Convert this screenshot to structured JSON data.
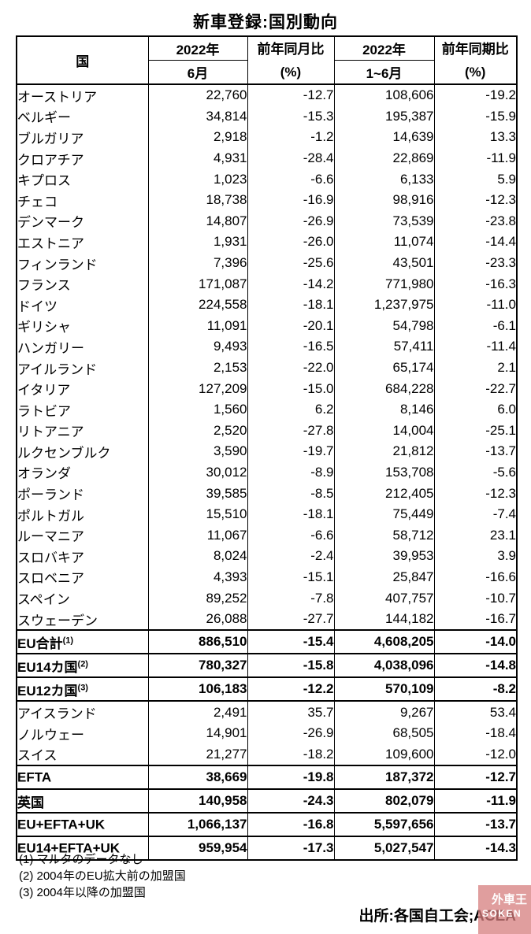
{
  "title": "新車登録:国別動向",
  "table": {
    "header": {
      "country": "国",
      "jun_year": "2022年",
      "jun_label": "6月",
      "yoy_month_label": "前年同月比",
      "yoy_month_unit": "(%)",
      "h1_year": "2022年",
      "h1_label": "1~6月",
      "yoy_period_label": "前年同期比",
      "yoy_period_unit": "(%)"
    },
    "rows": [
      {
        "label": "オーストリア",
        "sup": "",
        "jun": "22,760",
        "yoy_m": "-12.7",
        "h1": "108,606",
        "yoy_p": "-19.2",
        "bold": false
      },
      {
        "label": "ベルギー",
        "sup": "",
        "jun": "34,814",
        "yoy_m": "-15.3",
        "h1": "195,387",
        "yoy_p": "-15.9",
        "bold": false
      },
      {
        "label": "ブルガリア",
        "sup": "",
        "jun": "2,918",
        "yoy_m": "-1.2",
        "h1": "14,639",
        "yoy_p": "13.3",
        "bold": false
      },
      {
        "label": "クロアチア",
        "sup": "",
        "jun": "4,931",
        "yoy_m": "-28.4",
        "h1": "22,869",
        "yoy_p": "-11.9",
        "bold": false
      },
      {
        "label": "キプロス",
        "sup": "",
        "jun": "1,023",
        "yoy_m": "-6.6",
        "h1": "6,133",
        "yoy_p": "5.9",
        "bold": false
      },
      {
        "label": "チェコ",
        "sup": "",
        "jun": "18,738",
        "yoy_m": "-16.9",
        "h1": "98,916",
        "yoy_p": "-12.3",
        "bold": false
      },
      {
        "label": "デンマーク",
        "sup": "",
        "jun": "14,807",
        "yoy_m": "-26.9",
        "h1": "73,539",
        "yoy_p": "-23.8",
        "bold": false
      },
      {
        "label": "エストニア",
        "sup": "",
        "jun": "1,931",
        "yoy_m": "-26.0",
        "h1": "11,074",
        "yoy_p": "-14.4",
        "bold": false
      },
      {
        "label": "フィンランド",
        "sup": "",
        "jun": "7,396",
        "yoy_m": "-25.6",
        "h1": "43,501",
        "yoy_p": "-23.3",
        "bold": false
      },
      {
        "label": "フランス",
        "sup": "",
        "jun": "171,087",
        "yoy_m": "-14.2",
        "h1": "771,980",
        "yoy_p": "-16.3",
        "bold": false
      },
      {
        "label": "ドイツ",
        "sup": "",
        "jun": "224,558",
        "yoy_m": "-18.1",
        "h1": "1,237,975",
        "yoy_p": "-11.0",
        "bold": false
      },
      {
        "label": "ギリシャ",
        "sup": "",
        "jun": "11,091",
        "yoy_m": "-20.1",
        "h1": "54,798",
        "yoy_p": "-6.1",
        "bold": false
      },
      {
        "label": "ハンガリー",
        "sup": "",
        "jun": "9,493",
        "yoy_m": "-16.5",
        "h1": "57,411",
        "yoy_p": "-11.4",
        "bold": false
      },
      {
        "label": "アイルランド",
        "sup": "",
        "jun": "2,153",
        "yoy_m": "-22.0",
        "h1": "65,174",
        "yoy_p": "2.1",
        "bold": false
      },
      {
        "label": "イタリア",
        "sup": "",
        "jun": "127,209",
        "yoy_m": "-15.0",
        "h1": "684,228",
        "yoy_p": "-22.7",
        "bold": false
      },
      {
        "label": "ラトビア",
        "sup": "",
        "jun": "1,560",
        "yoy_m": "6.2",
        "h1": "8,146",
        "yoy_p": "6.0",
        "bold": false
      },
      {
        "label": "リトアニア",
        "sup": "",
        "jun": "2,520",
        "yoy_m": "-27.8",
        "h1": "14,004",
        "yoy_p": "-25.1",
        "bold": false
      },
      {
        "label": "ルクセンブルク",
        "sup": "",
        "jun": "3,590",
        "yoy_m": "-19.7",
        "h1": "21,812",
        "yoy_p": "-13.7",
        "bold": false
      },
      {
        "label": "オランダ",
        "sup": "",
        "jun": "30,012",
        "yoy_m": "-8.9",
        "h1": "153,708",
        "yoy_p": "-5.6",
        "bold": false
      },
      {
        "label": "ポーランド",
        "sup": "",
        "jun": "39,585",
        "yoy_m": "-8.5",
        "h1": "212,405",
        "yoy_p": "-12.3",
        "bold": false
      },
      {
        "label": "ポルトガル",
        "sup": "",
        "jun": "15,510",
        "yoy_m": "-18.1",
        "h1": "75,449",
        "yoy_p": "-7.4",
        "bold": false
      },
      {
        "label": "ルーマニア",
        "sup": "",
        "jun": "11,067",
        "yoy_m": "-6.6",
        "h1": "58,712",
        "yoy_p": "23.1",
        "bold": false
      },
      {
        "label": "スロバキア",
        "sup": "",
        "jun": "8,024",
        "yoy_m": "-2.4",
        "h1": "39,953",
        "yoy_p": "3.9",
        "bold": false
      },
      {
        "label": "スロベニア",
        "sup": "",
        "jun": "4,393",
        "yoy_m": "-15.1",
        "h1": "25,847",
        "yoy_p": "-16.6",
        "bold": false
      },
      {
        "label": "スペイン",
        "sup": "",
        "jun": "89,252",
        "yoy_m": "-7.8",
        "h1": "407,757",
        "yoy_p": "-10.7",
        "bold": false
      },
      {
        "label": "スウェーデン",
        "sup": "",
        "jun": "26,088",
        "yoy_m": "-27.7",
        "h1": "144,182",
        "yoy_p": "-16.7",
        "bold": false
      },
      {
        "label": "EU合計",
        "sup": "(1)",
        "jun": "886,510",
        "yoy_m": "-15.4",
        "h1": "4,608,205",
        "yoy_p": "-14.0",
        "bold": true
      },
      {
        "label": "EU14カ国",
        "sup": "(2)",
        "jun": "780,327",
        "yoy_m": "-15.8",
        "h1": "4,038,096",
        "yoy_p": "-14.8",
        "bold": true
      },
      {
        "label": "EU12カ国",
        "sup": "(3)",
        "jun": "106,183",
        "yoy_m": "-12.2",
        "h1": "570,109",
        "yoy_p": "-8.2",
        "bold": true
      },
      {
        "label": "アイスランド",
        "sup": "",
        "jun": "2,491",
        "yoy_m": "35.7",
        "h1": "9,267",
        "yoy_p": "53.4",
        "bold": false
      },
      {
        "label": "ノルウェー",
        "sup": "",
        "jun": "14,901",
        "yoy_m": "-26.9",
        "h1": "68,505",
        "yoy_p": "-18.4",
        "bold": false
      },
      {
        "label": "スイス",
        "sup": "",
        "jun": "21,277",
        "yoy_m": "-18.2",
        "h1": "109,600",
        "yoy_p": "-12.0",
        "bold": false
      },
      {
        "label": "EFTA",
        "sup": "",
        "jun": "38,669",
        "yoy_m": "-19.8",
        "h1": "187,372",
        "yoy_p": "-12.7",
        "bold": true
      },
      {
        "label": "英国",
        "sup": "",
        "jun": "140,958",
        "yoy_m": "-24.3",
        "h1": "802,079",
        "yoy_p": "-11.9",
        "bold": true
      },
      {
        "label": "EU+EFTA+UK",
        "sup": "",
        "jun": "1,066,137",
        "yoy_m": "-16.8",
        "h1": "5,597,656",
        "yoy_p": "-13.7",
        "bold": true
      },
      {
        "label": "EU14+EFTA+UK",
        "sup": "",
        "jun": "959,954",
        "yoy_m": "-17.3",
        "h1": "5,027,547",
        "yoy_p": "-14.3",
        "bold": true
      }
    ]
  },
  "footnotes": [
    "(1) マルタのデータなし",
    "(2) 2004年のEU拡大前の加盟国",
    "(3) 2004年以降の加盟国"
  ],
  "source": "出所:各国自工会;ACEA",
  "watermark": {
    "line1": "外車王",
    "line2": "SOKEN",
    "color": "#d67e7e"
  }
}
